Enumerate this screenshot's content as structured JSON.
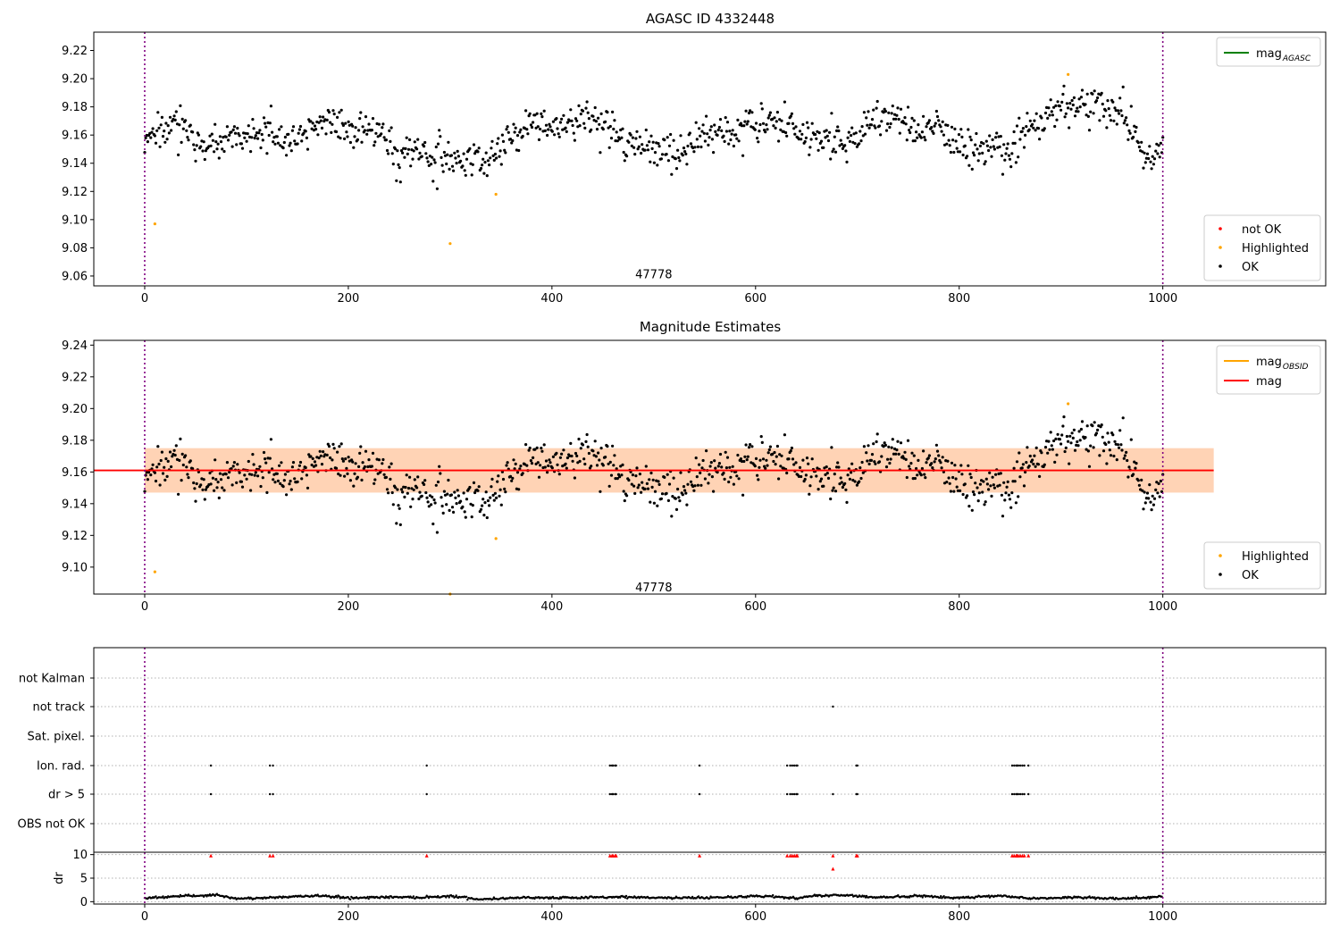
{
  "chart_data": [
    {
      "type": "scatter",
      "title": "AGASC ID 4332448",
      "xlim": [
        -50,
        1160
      ],
      "ylim": [
        9.053,
        9.233
      ],
      "xticks": [
        0,
        200,
        400,
        600,
        800,
        1000
      ],
      "yticks": [
        9.06,
        9.08,
        9.1,
        9.12,
        9.14,
        9.16,
        9.18,
        9.2,
        9.22
      ],
      "ytick_decimals": 2,
      "vlines": [
        0,
        1000
      ],
      "annotation": {
        "text": "47778",
        "x": 500,
        "y": 9.061
      },
      "legend_lines": [
        {
          "label": "mag",
          "sub": "AGASC",
          "color": "#008000"
        }
      ],
      "legend_points": [
        {
          "label": "not OK",
          "color": "#ff0000"
        },
        {
          "label": "Highlighted",
          "color": "#ffa500"
        },
        {
          "label": "OK",
          "color": "#000000"
        }
      ],
      "highlighted": [
        [
          10,
          9.097
        ],
        [
          300,
          9.083
        ],
        [
          345,
          9.118
        ],
        [
          907,
          9.203
        ]
      ],
      "ok_profile": [
        [
          0,
          9.155
        ],
        [
          20,
          9.163
        ],
        [
          30,
          9.17
        ],
        [
          45,
          9.16
        ],
        [
          60,
          9.151
        ],
        [
          80,
          9.155
        ],
        [
          100,
          9.16
        ],
        [
          120,
          9.157
        ],
        [
          140,
          9.158
        ],
        [
          160,
          9.162
        ],
        [
          180,
          9.168
        ],
        [
          200,
          9.163
        ],
        [
          220,
          9.165
        ],
        [
          240,
          9.16
        ],
        [
          250,
          9.145
        ],
        [
          265,
          9.15
        ],
        [
          280,
          9.145
        ],
        [
          300,
          9.141
        ],
        [
          320,
          9.145
        ],
        [
          335,
          9.142
        ],
        [
          345,
          9.15
        ],
        [
          360,
          9.158
        ],
        [
          380,
          9.168
        ],
        [
          400,
          9.165
        ],
        [
          420,
          9.17
        ],
        [
          440,
          9.172
        ],
        [
          460,
          9.168
        ],
        [
          470,
          9.155
        ],
        [
          490,
          9.15
        ],
        [
          510,
          9.146
        ],
        [
          530,
          9.148
        ],
        [
          550,
          9.16
        ],
        [
          580,
          9.162
        ],
        [
          600,
          9.167
        ],
        [
          610,
          9.172
        ],
        [
          630,
          9.165
        ],
        [
          650,
          9.16
        ],
        [
          670,
          9.158
        ],
        [
          690,
          9.153
        ],
        [
          710,
          9.168
        ],
        [
          730,
          9.175
        ],
        [
          745,
          9.17
        ],
        [
          760,
          9.162
        ],
        [
          780,
          9.168
        ],
        [
          795,
          9.16
        ],
        [
          810,
          9.148
        ],
        [
          830,
          9.15
        ],
        [
          850,
          9.147
        ],
        [
          860,
          9.16
        ],
        [
          880,
          9.17
        ],
        [
          900,
          9.182
        ],
        [
          920,
          9.18
        ],
        [
          940,
          9.184
        ],
        [
          960,
          9.174
        ],
        [
          975,
          9.155
        ],
        [
          990,
          9.138
        ],
        [
          1000,
          9.15
        ]
      ],
      "ok_noise": 0.0065,
      "ok_n": 1000,
      "seed": 4332448
    },
    {
      "type": "scatter",
      "title": "Magnitude Estimates",
      "xlim": [
        -50,
        1160
      ],
      "ylim": [
        9.083,
        9.243
      ],
      "xticks": [
        0,
        200,
        400,
        600,
        800,
        1000
      ],
      "yticks": [
        9.1,
        9.12,
        9.14,
        9.16,
        9.18,
        9.2,
        9.22,
        9.24
      ],
      "ytick_decimals": 2,
      "vlines": [
        0,
        1000
      ],
      "annotation": {
        "text": "47778",
        "x": 500,
        "y": 9.087
      },
      "band_obsid": {
        "x": [
          0,
          1050
        ],
        "y": [
          9.147,
          9.175
        ],
        "color": "#ffa500"
      },
      "band_mag": {
        "x": [
          0,
          1050
        ],
        "y": [
          9.147,
          9.175
        ],
        "color": "#ffb0b8"
      },
      "mag_line": {
        "y": 9.161,
        "x": [
          -50,
          1050
        ],
        "color": "#ff0000"
      },
      "legend_lines": [
        {
          "label": "mag",
          "sub": "OBSID",
          "color": "#ffa500"
        },
        {
          "label": "mag",
          "sub": "",
          "color": "#ff0000"
        }
      ],
      "legend_points": [
        {
          "label": "Highlighted",
          "color": "#ffa500"
        },
        {
          "label": "OK",
          "color": "#000000"
        }
      ],
      "highlighted": [
        [
          10,
          9.097
        ],
        [
          300,
          9.083
        ],
        [
          345,
          9.118
        ],
        [
          907,
          9.203
        ]
      ],
      "ok_profile": [
        [
          0,
          9.155
        ],
        [
          20,
          9.163
        ],
        [
          30,
          9.17
        ],
        [
          45,
          9.16
        ],
        [
          60,
          9.151
        ],
        [
          80,
          9.155
        ],
        [
          100,
          9.16
        ],
        [
          120,
          9.157
        ],
        [
          140,
          9.158
        ],
        [
          160,
          9.162
        ],
        [
          180,
          9.168
        ],
        [
          200,
          9.163
        ],
        [
          220,
          9.165
        ],
        [
          240,
          9.16
        ],
        [
          250,
          9.145
        ],
        [
          265,
          9.15
        ],
        [
          280,
          9.145
        ],
        [
          300,
          9.141
        ],
        [
          320,
          9.145
        ],
        [
          335,
          9.142
        ],
        [
          345,
          9.15
        ],
        [
          360,
          9.158
        ],
        [
          380,
          9.168
        ],
        [
          400,
          9.165
        ],
        [
          420,
          9.17
        ],
        [
          440,
          9.172
        ],
        [
          460,
          9.168
        ],
        [
          470,
          9.155
        ],
        [
          490,
          9.15
        ],
        [
          510,
          9.146
        ],
        [
          530,
          9.148
        ],
        [
          550,
          9.16
        ],
        [
          580,
          9.162
        ],
        [
          600,
          9.167
        ],
        [
          610,
          9.172
        ],
        [
          630,
          9.165
        ],
        [
          650,
          9.16
        ],
        [
          670,
          9.158
        ],
        [
          690,
          9.153
        ],
        [
          710,
          9.168
        ],
        [
          730,
          9.175
        ],
        [
          745,
          9.17
        ],
        [
          760,
          9.162
        ],
        [
          780,
          9.168
        ],
        [
          795,
          9.16
        ],
        [
          810,
          9.148
        ],
        [
          830,
          9.15
        ],
        [
          850,
          9.147
        ],
        [
          860,
          9.16
        ],
        [
          880,
          9.17
        ],
        [
          900,
          9.182
        ],
        [
          920,
          9.18
        ],
        [
          940,
          9.184
        ],
        [
          960,
          9.174
        ],
        [
          975,
          9.155
        ],
        [
          990,
          9.138
        ],
        [
          1000,
          9.15
        ]
      ],
      "ok_noise": 0.0065,
      "ok_n": 1000,
      "seed": 4332448
    },
    {
      "type": "scatter",
      "title": "",
      "xlim": [
        -50,
        1160
      ],
      "categories": [
        "not Kalman",
        "not track",
        "Sat. pixel.",
        "Ion. rad.",
        "dr > 5",
        "OBS not OK"
      ],
      "flag_points": {
        "not track": [
          676
        ],
        "Ion. rad.": [
          65,
          123,
          126,
          277,
          457,
          459,
          460,
          462,
          463,
          545,
          631,
          634,
          636,
          638,
          640,
          641,
          699,
          700,
          852,
          854,
          856,
          857,
          858,
          860,
          862,
          864,
          868
        ],
        "dr > 5": [
          65,
          123,
          126,
          277,
          457,
          459,
          460,
          462,
          463,
          545,
          631,
          634,
          636,
          638,
          640,
          641,
          676,
          699,
          700,
          852,
          854,
          856,
          857,
          858,
          860,
          862,
          864,
          868
        ]
      }
    },
    {
      "type": "scatter",
      "title": "",
      "ylabel": "dr",
      "xlim": [
        -50,
        1160
      ],
      "ylim": [
        -0.5,
        10.5
      ],
      "xticks": [
        0,
        200,
        400,
        600,
        800,
        1000
      ],
      "yticks": [
        0,
        5,
        10
      ],
      "vlines": [
        0,
        1000
      ],
      "dr_baseline": [
        [
          0,
          0.8
        ],
        [
          40,
          1.2
        ],
        [
          70,
          1.4
        ],
        [
          90,
          0.6
        ],
        [
          140,
          1.0
        ],
        [
          170,
          1.3
        ],
        [
          200,
          0.8
        ],
        [
          240,
          1.0
        ],
        [
          270,
          0.9
        ],
        [
          300,
          1.2
        ],
        [
          330,
          0.5
        ],
        [
          370,
          0.9
        ],
        [
          420,
          0.8
        ],
        [
          470,
          1.0
        ],
        [
          520,
          0.8
        ],
        [
          560,
          0.9
        ],
        [
          610,
          1.2
        ],
        [
          640,
          0.7
        ],
        [
          660,
          1.3
        ],
        [
          690,
          1.4
        ],
        [
          720,
          0.9
        ],
        [
          760,
          1.2
        ],
        [
          800,
          0.8
        ],
        [
          840,
          1.3
        ],
        [
          870,
          0.7
        ],
        [
          920,
          0.9
        ],
        [
          960,
          0.6
        ],
        [
          1000,
          1.1
        ]
      ],
      "red_points": [
        [
          65,
          9.8
        ],
        [
          123,
          9.8
        ],
        [
          126,
          9.8
        ],
        [
          277,
          9.8
        ],
        [
          457,
          9.8
        ],
        [
          459,
          9.8
        ],
        [
          460,
          9.8
        ],
        [
          462,
          9.8
        ],
        [
          463,
          9.8
        ],
        [
          545,
          9.8
        ],
        [
          631,
          9.8
        ],
        [
          634,
          9.8
        ],
        [
          636,
          9.8
        ],
        [
          638,
          9.8
        ],
        [
          640,
          9.8
        ],
        [
          641,
          9.8
        ],
        [
          676,
          9.8
        ],
        [
          676,
          7.0
        ],
        [
          699,
          9.8
        ],
        [
          700,
          9.8
        ],
        [
          852,
          9.8
        ],
        [
          854,
          9.8
        ],
        [
          856,
          9.8
        ],
        [
          857,
          9.8
        ],
        [
          858,
          9.8
        ],
        [
          860,
          9.8
        ],
        [
          862,
          9.8
        ],
        [
          864,
          9.8
        ],
        [
          868,
          9.8
        ]
      ]
    }
  ]
}
